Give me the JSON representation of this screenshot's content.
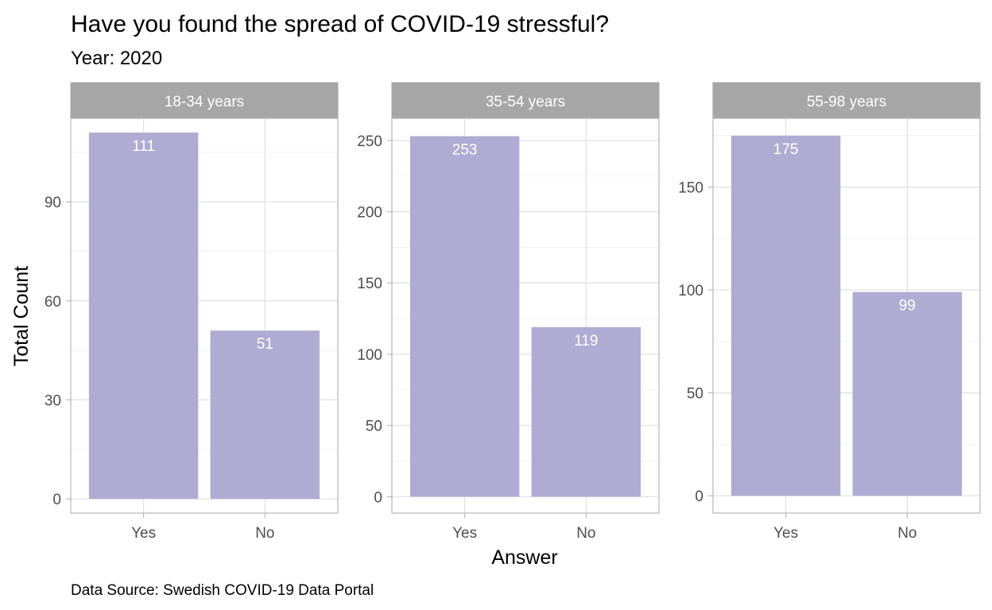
{
  "chart_data": {
    "type": "bar",
    "title": "Have you found the spread of COVID-19 stressful?",
    "subtitle": "Year: 2020",
    "caption": "Data Source: Swedish COVID-19 Data Portal",
    "xlabel": "Answer",
    "ylabel": "Total Count",
    "categories": [
      "Yes",
      "No"
    ],
    "bar_color": "#b0abd2",
    "strip_color": "#a6a6a6",
    "grid": true,
    "facets": [
      {
        "name": "18-34 years",
        "values": [
          111,
          51
        ],
        "ylim": [
          -4.3,
          115.3
        ],
        "yticks": [
          0,
          30,
          60,
          90
        ],
        "tick_labels": [
          "0",
          "30",
          "60",
          "90"
        ]
      },
      {
        "name": "35-54 years",
        "values": [
          253,
          119
        ],
        "ylim": [
          -11.5,
          265.5
        ],
        "yticks": [
          0,
          50,
          100,
          150,
          200,
          250
        ],
        "tick_labels": [
          "0",
          "50",
          "100",
          "150",
          "200",
          "250"
        ]
      },
      {
        "name": "55-98 years",
        "values": [
          175,
          99
        ],
        "ylim": [
          -8.4,
          183.4
        ],
        "yticks": [
          0,
          50,
          100,
          150
        ],
        "tick_labels": [
          "0",
          "50",
          "100",
          "150"
        ]
      }
    ]
  }
}
